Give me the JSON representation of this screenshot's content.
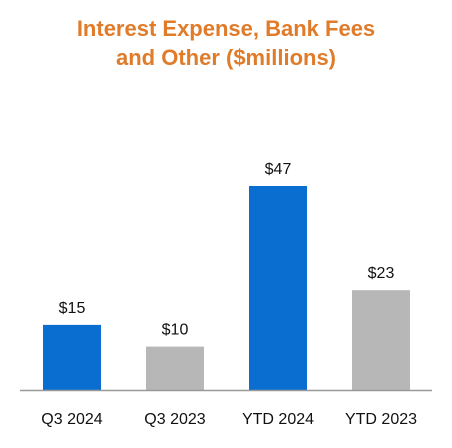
{
  "chart_data": {
    "type": "bar",
    "title_lines": [
      "Interest Expense, Bank Fees",
      "and Other ($millions)"
    ],
    "categories": [
      "Q3 2024",
      "Q3 2023",
      "YTD 2024",
      "YTD 2023"
    ],
    "values": [
      15,
      10,
      47,
      23
    ],
    "value_labels": [
      "$15",
      "$10",
      "$47",
      "$23"
    ],
    "bar_colors": [
      "#0a6ed1",
      "#b7b7b7",
      "#0a6ed1",
      "#b7b7b7"
    ],
    "title_color": "#e07b2a",
    "text_color": "#111111",
    "axis_color": "#999999",
    "xlabel": "",
    "ylabel": "",
    "ylim": [
      0,
      47
    ],
    "grid": false,
    "legend": "none"
  }
}
